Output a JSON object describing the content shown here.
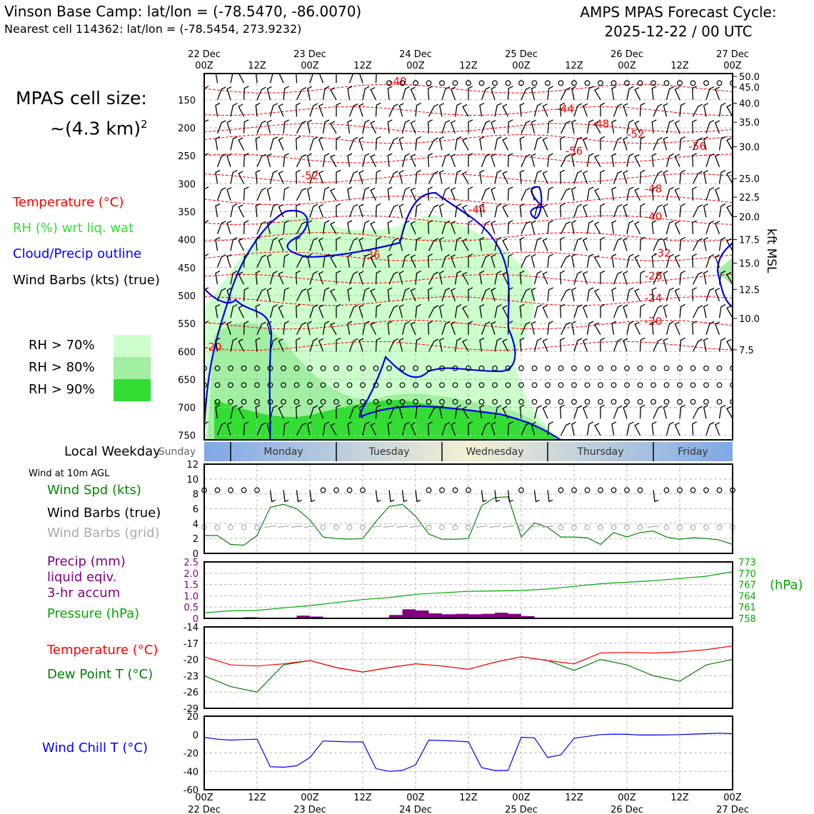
{
  "header": {
    "title_left": "Vinson Base Camp: lat/lon = (-78.5470, -86.0070)",
    "subtitle_left": "Nearest cell 114362: lat/lon = (-78.5454, 273.9232)",
    "title_right_line1": "AMPS MPAS Forecast Cycle:",
    "title_right_line2": "2025-12-22 / 00 UTC"
  },
  "cell_size": {
    "line1": "MPAS cell size:",
    "line2": "~(4.3 km)",
    "sup": "2"
  },
  "legend": {
    "temperature": "Temperature (°C)",
    "rh": "RH (%) wrt liq. wat",
    "cloud": "Cloud/Precip outline",
    "wind": "Wind Barbs (kts) (true)",
    "rh70": "RH > 70%",
    "rh80": "RH > 80%",
    "rh90": "RH > 90%",
    "colors": {
      "temperature": "#ff0000",
      "rh": "#33dd33",
      "cloud": "#0000ff",
      "wind": "#000000",
      "rh70": "#ccffcc",
      "rh80": "#a2eea2",
      "rh90": "#33dd33"
    }
  },
  "time_axis": {
    "top_dates": [
      "22 Dec\n00Z",
      "12Z",
      "23 Dec\n00Z",
      "12Z",
      "24 Dec\n00Z",
      "12Z",
      "25 Dec\n00Z",
      "12Z",
      "26 Dec\n00Z",
      "12Z",
      "27 Dec\n00Z"
    ],
    "bottom_hours": [
      "00Z",
      "12Z",
      "00Z",
      "12Z",
      "00Z",
      "12Z",
      "00Z",
      "12Z",
      "00Z",
      "12Z",
      "00Z"
    ],
    "bottom_dates": [
      "22 Dec",
      "23 Dec",
      "24 Dec",
      "25 Dec",
      "26 Dec",
      "27 Dec"
    ],
    "forecast_hours": [
      0,
      120
    ]
  },
  "weekday_bar": {
    "label": "Local Weekday",
    "days": [
      "Sunday",
      "Monday",
      "Tuesday",
      "Wednesday",
      "Thursday",
      "Friday"
    ]
  },
  "sub_labels": {
    "wind10m": "Wind at 10m AGL",
    "wind_spd": "Wind Spd (kts)",
    "wind_barbs_true": "Wind Barbs (true)",
    "wind_barbs_grid": "Wind Barbs (grid)",
    "precip_line1": "Precip (mm)",
    "precip_line2": "liquid eqiv.",
    "precip_line3": "3-hr accum",
    "pressure": "Pressure (hPa)",
    "pressure_unit": "(hPa)",
    "temperature": "Temperature (°C)",
    "dewpoint": "Dew Point T (°C)",
    "windchill": "Wind Chill T (°C)",
    "kft_msl": "kft MSL"
  },
  "chart_data": [
    {
      "type": "heatmap",
      "name": "cross-section",
      "y_axis_left": {
        "label": "pressure (hPa)",
        "ticks": [
          "150",
          "200",
          "250",
          "300",
          "350",
          "400",
          "450",
          "500",
          "550",
          "600",
          "650",
          "700",
          "750"
        ]
      },
      "y_axis_right": {
        "label": "kft MSL",
        "ticks": [
          "50.0",
          "45.0",
          "40.0",
          "35.0",
          "30.0",
          "25.0",
          "22.5",
          "20.0",
          "17.5",
          "15.0",
          "12.5",
          "10.0",
          "7.5"
        ],
        "pressure_positions": [
          108,
          127,
          156,
          190,
          234,
          291,
          324,
          359,
          400,
          442,
          489,
          541,
          597
        ]
      },
      "temperature_contour_labels": [
        {
          "label": "-40",
          "hour": 22,
          "p": 116
        },
        {
          "label": "-44",
          "hour": 41,
          "p": 165
        },
        {
          "label": "-48",
          "hour": 45,
          "p": 192
        },
        {
          "label": "-52",
          "hour": 49,
          "p": 210
        },
        {
          "label": "-56",
          "hour": 42,
          "p": 240
        },
        {
          "label": "-56",
          "hour": 56,
          "p": 232
        },
        {
          "label": "-52",
          "hour": 12,
          "p": 284
        },
        {
          "label": "-48",
          "hour": 51,
          "p": 308
        },
        {
          "label": "-44",
          "hour": 31,
          "p": 345
        },
        {
          "label": "-40",
          "hour": 51,
          "p": 358
        },
        {
          "label": "-36",
          "hour": 19,
          "p": 426
        },
        {
          "label": "-32",
          "hour": 52,
          "p": 423
        },
        {
          "label": "-28",
          "hour": 51,
          "p": 464
        },
        {
          "label": "-24",
          "hour": 51,
          "p": 503
        },
        {
          "label": "-20",
          "hour": 51,
          "p": 545
        },
        {
          "label": "-20",
          "hour": 1,
          "p": 591
        }
      ]
    },
    {
      "type": "line",
      "name": "wind-10m",
      "title": "Wind Spd (kts)",
      "ylim": [
        0,
        12
      ],
      "yticks": [
        "0",
        "2",
        "4",
        "6",
        "8",
        "10",
        "12"
      ],
      "x_hours": [
        0,
        3,
        6,
        9,
        12,
        15,
        18,
        21,
        24,
        27,
        30,
        33,
        36,
        39,
        42,
        45,
        48,
        51,
        54,
        57,
        60,
        63,
        66,
        69,
        72,
        75,
        78,
        81,
        84,
        87,
        90,
        93,
        96,
        99,
        102,
        105,
        108,
        111,
        114,
        117,
        120
      ],
      "series": [
        {
          "name": "Wind Spd (kts)",
          "color": "#008800",
          "values": [
            2.4,
            2.4,
            1.2,
            1.1,
            2.4,
            6.2,
            6.6,
            6.0,
            4.5,
            2.2,
            2.0,
            1.9,
            2.0,
            4.3,
            6.3,
            6.6,
            5.0,
            2.6,
            1.9,
            1.9,
            2.0,
            6.4,
            7.5,
            7.6,
            2.2,
            4.1,
            3.5,
            2.2,
            2.2,
            2.1,
            1.2,
            2.8,
            2.2,
            2.8,
            3.0,
            2.2,
            1.9,
            2.1,
            2.0,
            1.8,
            1.2
          ]
        }
      ]
    },
    {
      "type": "bar",
      "name": "precip-pressure",
      "ylim": [
        0,
        2.5
      ],
      "yticks": [
        "0",
        "0.5",
        "1.0",
        "1.5",
        "2.0",
        "2.5"
      ],
      "pressure_ticks": [
        "758",
        "761",
        "764",
        "767",
        "770",
        "773"
      ],
      "pressure_lim": [
        758,
        773
      ],
      "precip_hours": [
        0,
        3,
        6,
        9,
        12,
        15,
        18,
        21,
        24,
        27,
        30,
        33,
        36,
        39,
        42,
        45,
        48,
        51,
        54,
        57,
        60,
        63,
        66,
        69,
        72,
        75
      ],
      "series": [
        {
          "name": "Precip (mm)",
          "color": "#800080",
          "values": [
            0,
            0,
            0,
            0.05,
            0,
            0,
            0,
            0.12,
            0.08,
            0,
            0,
            0,
            0,
            0,
            0.15,
            0.4,
            0.35,
            0.22,
            0.18,
            0.2,
            0.18,
            0.2,
            0.25,
            0.2,
            0.1,
            0
          ]
        },
        {
          "name": "Pressure (hPa)",
          "color": "#00aa00",
          "x_hours": [
            0,
            6,
            12,
            18,
            24,
            30,
            36,
            42,
            48,
            54,
            60,
            66,
            72,
            78,
            84,
            90,
            96,
            102,
            108,
            114,
            120
          ],
          "values": [
            759.5,
            760,
            760.1,
            760.8,
            761.4,
            762.2,
            763,
            763.5,
            764.4,
            764.8,
            765.2,
            765.3,
            765.4,
            765.8,
            766.5,
            767.2,
            767.6,
            768,
            768.6,
            769.2,
            770.4
          ]
        }
      ]
    },
    {
      "type": "line",
      "name": "temperature-dewpoint",
      "ylim": [
        -29,
        -14
      ],
      "yticks": [
        "-29",
        "-26",
        "-23",
        "-20",
        "-17",
        "-14"
      ],
      "x_hours": [
        0,
        6,
        12,
        18,
        24,
        30,
        36,
        42,
        48,
        54,
        60,
        66,
        72,
        78,
        84,
        90,
        96,
        102,
        108,
        114,
        120
      ],
      "series": [
        {
          "name": "Temperature (°C)",
          "color": "#ff0000",
          "values": [
            -19.5,
            -21,
            -21.2,
            -20.8,
            -20.2,
            -21.5,
            -22.3,
            -21.5,
            -20.8,
            -21.2,
            -21.8,
            -20.5,
            -19.5,
            -20.2,
            -20.8,
            -18.8,
            -18.7,
            -18.8,
            -18.6,
            -18.2,
            -17.5
          ]
        },
        {
          "name": "Dew Point T (°C)",
          "color": "#008000",
          "values": [
            -23,
            -25,
            -26,
            -21,
            -20.2,
            -21.5,
            -22.3,
            -21.5,
            -20.8,
            -21.2,
            -21.8,
            -20.5,
            -19.5,
            -20.2,
            -22,
            -20,
            -21,
            -23,
            -24,
            -21,
            -20
          ]
        }
      ]
    },
    {
      "type": "line",
      "name": "wind-chill",
      "ylim": [
        -60,
        20
      ],
      "yticks": [
        "-60",
        "-40",
        "-20",
        "0",
        "20"
      ],
      "x_hours": [
        0,
        3,
        6,
        9,
        12,
        15,
        18,
        21,
        24,
        27,
        30,
        33,
        36,
        39,
        42,
        45,
        48,
        51,
        54,
        57,
        60,
        63,
        66,
        69,
        72,
        75,
        78,
        81,
        84,
        87,
        90,
        93,
        96,
        99,
        102,
        105,
        108,
        111,
        114,
        117,
        120
      ],
      "series": [
        {
          "name": "Wind Chill T (°C)",
          "color": "#0000ff",
          "values": [
            -3,
            -5,
            -6,
            -5.5,
            -5,
            -35,
            -35.5,
            -34,
            -25,
            -7,
            -7.5,
            -8,
            -8,
            -37,
            -40,
            -39,
            -33,
            -6,
            -6.5,
            -7,
            -8,
            -36,
            -39,
            -39,
            -3,
            -3.5,
            -25,
            -22,
            -4,
            -2,
            0,
            0.5,
            0.3,
            -0.5,
            -0.5,
            -0.4,
            0,
            0.5,
            1,
            1.5,
            1
          ]
        }
      ]
    }
  ]
}
